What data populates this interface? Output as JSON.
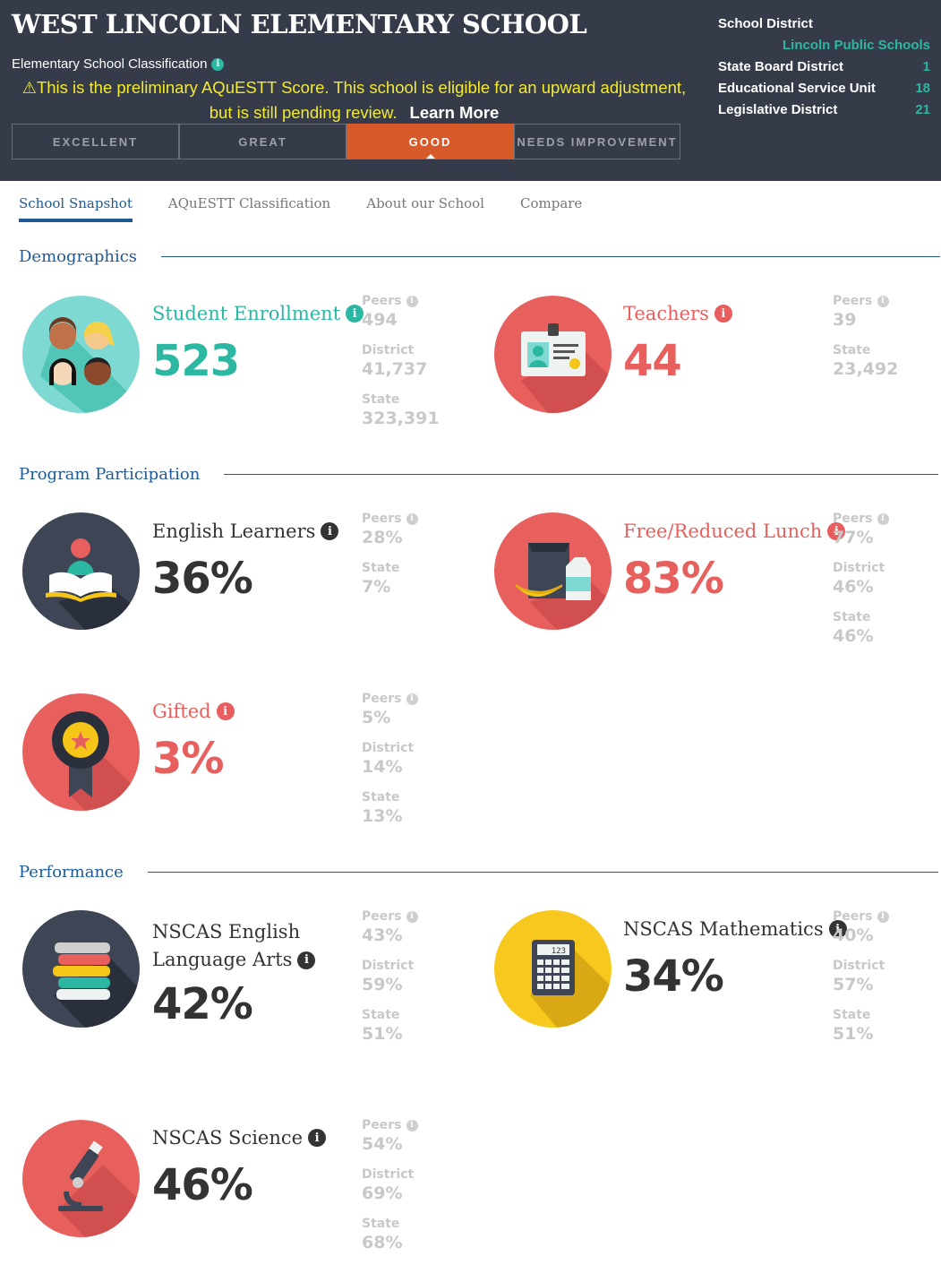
{
  "header": {
    "school_name": "WEST LINCOLN ELEMENTARY SCHOOL",
    "classification_label": "Elementary School Classification",
    "notice_text": "This is the preliminary AQuESTT Score. This school is eligible for an upward adjustment, but is still pending review.",
    "learn_more": "Learn More",
    "ratings": [
      {
        "label": "EXCELLENT",
        "active": false
      },
      {
        "label": "GREAT",
        "active": false
      },
      {
        "label": "GOOD",
        "active": true
      },
      {
        "label": "NEEDS IMPROVEMENT",
        "active": false
      }
    ],
    "district": {
      "school_district_label": "School District",
      "school_district_value": "Lincoln Public Schools",
      "rows": [
        {
          "label": "State Board District",
          "value": "1"
        },
        {
          "label": "Educational Service Unit",
          "value": "18"
        },
        {
          "label": "Legislative District",
          "value": "21"
        }
      ]
    }
  },
  "tabs": [
    "School Snapshot",
    "AQuESTT Classification",
    "About our School",
    "Compare"
  ],
  "sections": {
    "demographics": "Demographics",
    "program": "Program Participation",
    "performance": "Performance"
  },
  "stats": {
    "enrollment": {
      "label": "Student Enrollment",
      "value": "523",
      "icon": "students-icon",
      "compare": [
        {
          "label": "Peers",
          "value": "494"
        },
        {
          "label": "District",
          "value": "41,737"
        },
        {
          "label": "State",
          "value": "323,391"
        }
      ]
    },
    "teachers": {
      "label": "Teachers",
      "value": "44",
      "icon": "id-card-icon",
      "compare": [
        {
          "label": "Peers",
          "value": "39"
        },
        {
          "label": "State",
          "value": "23,492"
        }
      ]
    },
    "english_learners": {
      "label": "English Learners",
      "value": "36%",
      "icon": "reader-icon",
      "compare": [
        {
          "label": "Peers",
          "value": "28%"
        },
        {
          "label": "State",
          "value": "7%"
        }
      ]
    },
    "lunch": {
      "label": "Free/Reduced Lunch",
      "value": "83%",
      "icon": "lunch-icon",
      "compare": [
        {
          "label": "Peers",
          "value": "77%"
        },
        {
          "label": "District",
          "value": "46%"
        },
        {
          "label": "State",
          "value": "46%"
        }
      ]
    },
    "gifted": {
      "label": "Gifted",
      "value": "3%",
      "icon": "ribbon-icon",
      "compare": [
        {
          "label": "Peers",
          "value": "5%"
        },
        {
          "label": "District",
          "value": "14%"
        },
        {
          "label": "State",
          "value": "13%"
        }
      ]
    },
    "ela": {
      "label_line1": "NSCAS English",
      "label_line2": "Language Arts",
      "value": "42%",
      "icon": "books-icon",
      "compare": [
        {
          "label": "Peers",
          "value": "43%"
        },
        {
          "label": "District",
          "value": "59%"
        },
        {
          "label": "State",
          "value": "51%"
        }
      ]
    },
    "math": {
      "label": "NSCAS Mathematics",
      "value": "34%",
      "icon": "calculator-icon",
      "calc_display": "123",
      "compare": [
        {
          "label": "Peers",
          "value": "40%"
        },
        {
          "label": "District",
          "value": "57%"
        },
        {
          "label": "State",
          "value": "51%"
        }
      ]
    },
    "science": {
      "label": "NSCAS Science",
      "value": "46%",
      "icon": "microscope-icon",
      "compare": [
        {
          "label": "Peers",
          "value": "54%"
        },
        {
          "label": "District",
          "value": "69%"
        },
        {
          "label": "State",
          "value": "68%"
        }
      ]
    }
  },
  "colors": {
    "teal": "#2bb7a1",
    "red": "#e8605e",
    "header": "#363b4a",
    "active_rating": "#d75a2b",
    "link_blue": "#1f5a96"
  }
}
